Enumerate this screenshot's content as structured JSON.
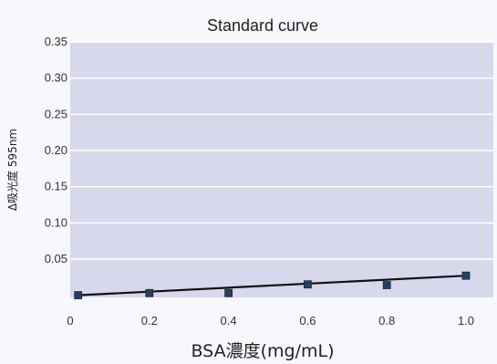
{
  "chart_data": {
    "type": "line",
    "title": "Standard curve",
    "xlabel": "BSA濃度(mg/mL)",
    "ylabel": "Δ吸光度 595nm",
    "x": [
      0.02,
      0.2,
      0.4,
      0.6,
      0.8,
      1.0
    ],
    "series": [
      {
        "values": [
          0.0,
          0.003,
          0.003,
          0.015,
          0.014,
          0.027
        ],
        "fit": [
          0.0,
          0.027
        ]
      }
    ],
    "xlim": [
      0,
      1.0
    ],
    "ylim": [
      -0.003,
      0.35
    ],
    "x_ticks": [
      "0",
      "0.2",
      "0.4",
      "0.6",
      "0.8",
      "1.0"
    ],
    "y_ticks": [
      "0.05",
      "0.10",
      "0.15",
      "0.20",
      "0.25",
      "0.30",
      "0.35"
    ],
    "grid": true,
    "legend": "none",
    "colors": {
      "plot_background": "#d8d8ec",
      "grid_line": "#ffffff",
      "marker": "#27405f",
      "fit_line": "#111111",
      "page_background": "#f6f8fc"
    }
  }
}
